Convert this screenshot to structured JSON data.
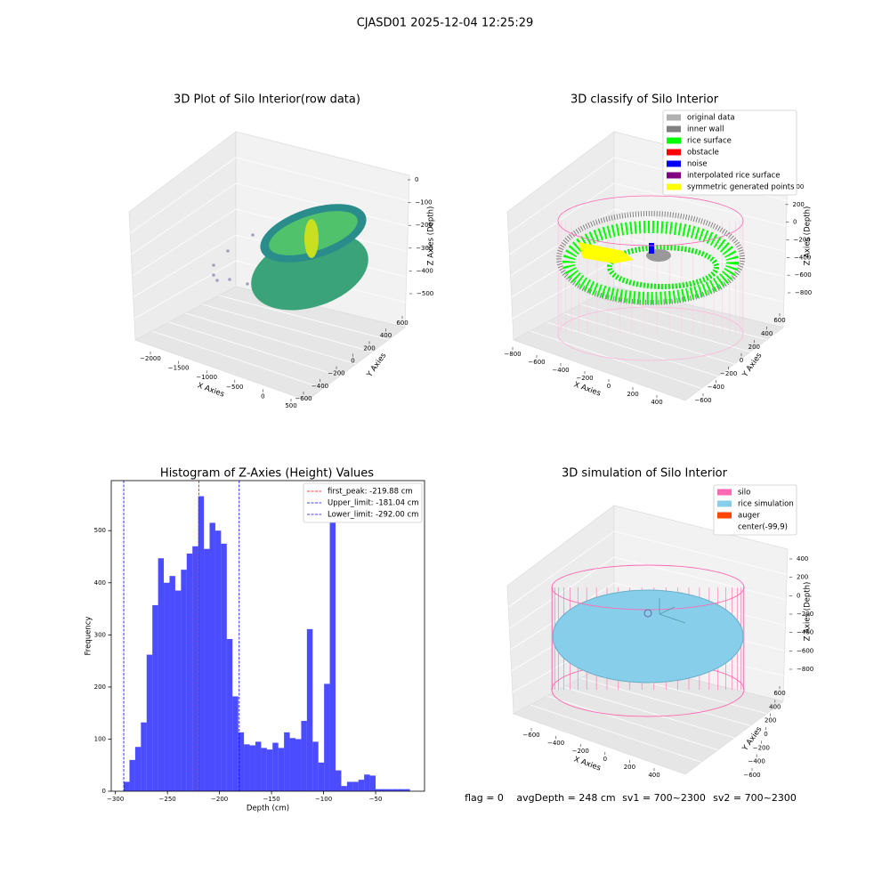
{
  "suptitle": "CJASD01 2025-12-04 12:25:29",
  "footer": [
    "flag = 0",
    "avgDepth = 248 cm",
    "sv1 = 700~2300",
    "sv2 = 700~2300"
  ],
  "chart_data": [
    {
      "type": "scatter3d",
      "title": "3D Plot of Silo Interior(row data)",
      "xlabel": "X Axies",
      "ylabel": "Y Axies",
      "zlabel": "Z Axies (Depth)",
      "xticks": [
        {
          "value": -2000,
          "label": "−2000"
        },
        {
          "value": -1500,
          "label": "−1500"
        },
        {
          "value": -1000,
          "label": "−1000"
        },
        {
          "value": -500,
          "label": "−500"
        },
        0,
        500
      ],
      "yticks": [
        {
          "value": -600,
          "label": "−600"
        },
        {
          "value": -400,
          "label": "−400"
        },
        {
          "value": -200,
          "label": "−200"
        },
        0,
        200,
        400,
        600
      ],
      "zticks": [
        0,
        {
          "value": -100,
          "label": "−100"
        },
        {
          "value": -200,
          "label": "−200"
        },
        {
          "value": -300,
          "label": "−300"
        },
        {
          "value": -400,
          "label": "−400"
        },
        {
          "value": -500,
          "label": "−500"
        }
      ]
    },
    {
      "type": "scatter3d",
      "title": "3D classify of Silo Interior",
      "xlabel": "X Axies",
      "ylabel": "Y Axies",
      "zlabel": "Z Axies (Depth)",
      "xticks": [
        {
          "value": -800,
          "label": "−800"
        },
        {
          "value": -600,
          "label": "−600"
        },
        {
          "value": -400,
          "label": "−400"
        },
        {
          "value": -200,
          "label": "−200"
        },
        0,
        200,
        400
      ],
      "yticks": [
        {
          "value": -600,
          "label": "−600"
        },
        {
          "value": -400,
          "label": "−400"
        },
        {
          "value": -200,
          "label": "−200"
        },
        0,
        200,
        400,
        600
      ],
      "zticks": [
        400,
        200,
        0,
        {
          "value": -200,
          "label": "−200"
        },
        {
          "value": -400,
          "label": "−400"
        },
        {
          "value": -600,
          "label": "−600"
        },
        {
          "value": -800,
          "label": "−800"
        }
      ],
      "series": [
        {
          "name": "original data",
          "color": "#b0b0b0"
        },
        {
          "name": "inner wall",
          "color": "#808080"
        },
        {
          "name": "rice surface",
          "color": "#00ff00"
        },
        {
          "name": "obstacle",
          "color": "#ff0000"
        },
        {
          "name": "noise",
          "color": "#0000ff"
        },
        {
          "name": "interpolated rice surface",
          "color": "#800080"
        },
        {
          "name": "symmetric generated points",
          "color": "#ffff00"
        }
      ]
    },
    {
      "type": "histogram",
      "title": "Histogram of Z-Axies (Height) Values",
      "xlabel": "Depth (cm)",
      "ylabel": "Frequency",
      "color": "#0000ff",
      "legend": "upper right",
      "bins": [
        -292,
        -286.5,
        -281,
        -275.5,
        -270,
        -264.5,
        -259,
        -253.5,
        -248,
        -242.5,
        -237,
        -231.5,
        -226,
        -220.5,
        -215,
        -209.5,
        -204,
        -198.5,
        -193,
        -187.5,
        -182,
        -176.5,
        -171,
        -165.5,
        -160,
        -154.5,
        -149,
        -143.5,
        -138,
        -132.5,
        -127,
        -121.5,
        -116,
        -110.5,
        -105,
        -99.5,
        -94,
        -88.5,
        -83,
        -77.5,
        -72,
        -66.5,
        -61,
        -55.5,
        -50,
        -44.5,
        -39,
        -33.5,
        -28,
        -22.5,
        -17
      ],
      "counts": [
        18,
        60,
        85,
        132,
        262,
        357,
        447,
        400,
        413,
        385,
        425,
        456,
        470,
        566,
        465,
        515,
        500,
        475,
        292,
        182,
        113,
        90,
        88,
        95,
        83,
        80,
        93,
        83,
        113,
        102,
        100,
        135,
        311,
        95,
        55,
        206,
        578,
        40,
        10,
        18,
        18,
        22,
        32,
        30,
        4,
        4,
        4,
        4,
        4,
        4
      ],
      "xlim": [
        -304,
        -3
      ],
      "ylim": [
        0,
        596
      ],
      "xticks": [
        {
          "value": -300,
          "label": "−300"
        },
        {
          "value": -250,
          "label": "−250"
        },
        {
          "value": -200,
          "label": "−200"
        },
        {
          "value": -150,
          "label": "−150"
        },
        {
          "value": -100,
          "label": "−100"
        },
        {
          "value": -50,
          "label": "−50"
        }
      ],
      "yticks": [
        0,
        100,
        200,
        300,
        400,
        500
      ],
      "lines": [
        {
          "name": "first_peak: -219.88 cm",
          "value": -219.88,
          "color": "#ff0000"
        },
        {
          "name": "Upper_limit: -181.04 cm",
          "value": -181.04,
          "color": "#0000ff"
        },
        {
          "name": "Lower_limit: -292.00 cm",
          "value": -292,
          "color": "#0000ff"
        }
      ]
    },
    {
      "type": "scatter3d",
      "title": "3D simulation of Silo Interior",
      "xlabel": "X Axies",
      "ylabel": "Y Axies",
      "zlabel": "Z Axies (Depth)",
      "xticks": [
        {
          "value": -600,
          "label": "−600"
        },
        {
          "value": -400,
          "label": "−400"
        },
        {
          "value": -200,
          "label": "−200"
        },
        0,
        200,
        400
      ],
      "yticks": [
        {
          "value": -600,
          "label": "−600"
        },
        {
          "value": -400,
          "label": "−400"
        },
        {
          "value": -200,
          "label": "−200"
        },
        0,
        200,
        400,
        600
      ],
      "zticks": [
        400,
        200,
        0,
        {
          "value": -200,
          "label": "−200"
        },
        {
          "value": -400,
          "label": "−400"
        },
        {
          "value": -600,
          "label": "−600"
        },
        {
          "value": -800,
          "label": "−800"
        }
      ],
      "series": [
        {
          "name": "silo",
          "color": "#ff69b4"
        },
        {
          "name": "rice simulation",
          "color": "#87ceeb"
        },
        {
          "name": "auger",
          "color": "#ff4500"
        },
        {
          "name": "center(-99,9)",
          "color": "#ffffff"
        }
      ]
    }
  ]
}
